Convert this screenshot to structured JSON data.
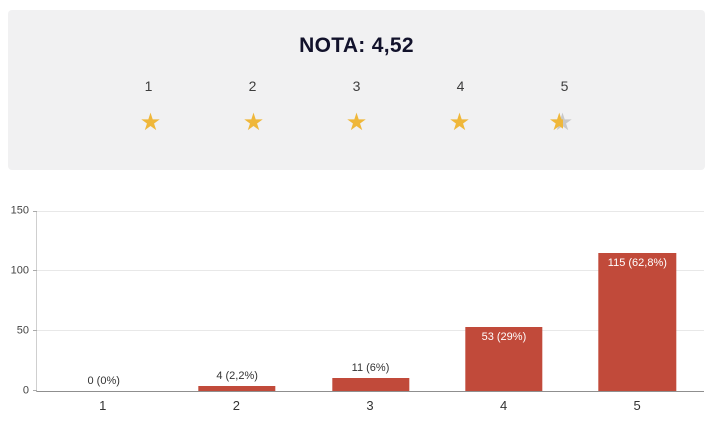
{
  "rating": {
    "title": "NOTA: 4,52",
    "scale": [
      "1",
      "2",
      "3",
      "4",
      "5"
    ],
    "stars_filled": 4,
    "partial_fill": 0.52,
    "star_color": "#efb73a",
    "star_empty_color": "#c9c9c9"
  },
  "chart_data": {
    "type": "bar",
    "title": "",
    "xlabel": "",
    "ylabel": "",
    "categories": [
      "1",
      "2",
      "3",
      "4",
      "5"
    ],
    "values": [
      0,
      4,
      11,
      53,
      115
    ],
    "labels": [
      "0 (0%)",
      "4 (2,2%)",
      "11 (6%)",
      "53 (29%)",
      "115 (62,8%)"
    ],
    "bar_color": "#c14a3a",
    "ylim": [
      0,
      150
    ],
    "yticks": [
      0,
      50,
      100,
      150
    ],
    "grid": true,
    "legend": false
  }
}
